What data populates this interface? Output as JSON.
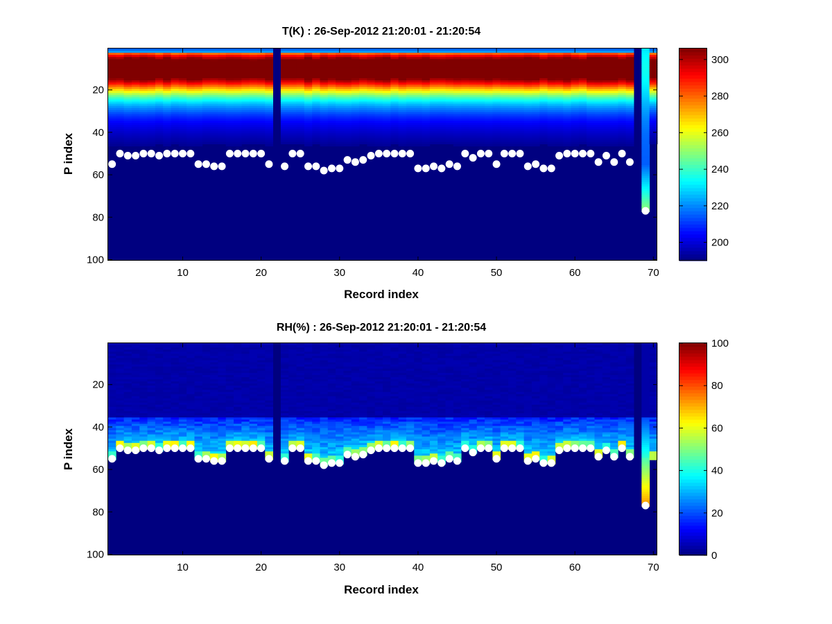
{
  "chart_data": [
    {
      "type": "heatmap",
      "title": "T(K) : 26-Sep-2012 21:20:01 - 21:20:54",
      "xlabel": "Record index",
      "ylabel": "P index",
      "x_range": [
        0.5,
        70.5
      ],
      "y_range": [
        0.5,
        100.5
      ],
      "y_reversed": true,
      "xticks": [
        10,
        20,
        30,
        40,
        50,
        60,
        70
      ],
      "yticks": [
        20,
        40,
        60,
        80,
        100
      ],
      "colormap": "jet",
      "clim": [
        190,
        306
      ],
      "colorbar_ticks": [
        200,
        220,
        240,
        260,
        280,
        300
      ],
      "field": "temperature",
      "missing_columns": [
        22,
        68
      ]
    },
    {
      "type": "heatmap",
      "title": "RH(%) : 26-Sep-2012 21:20:01 - 21:20:54",
      "xlabel": "Record index",
      "ylabel": "P index",
      "x_range": [
        0.5,
        70.5
      ],
      "y_range": [
        0.5,
        100.5
      ],
      "y_reversed": true,
      "xticks": [
        10,
        20,
        30,
        40,
        50,
        60,
        70
      ],
      "yticks": [
        20,
        40,
        60,
        80,
        100
      ],
      "colormap": "jet",
      "clim": [
        0,
        100
      ],
      "colorbar_ticks": [
        0,
        20,
        40,
        60,
        80,
        100
      ],
      "field": "humidity",
      "missing_columns": [
        22,
        68
      ]
    }
  ],
  "surface_markers": {
    "description": "white circles marking the surface P index per record (same in both panels)",
    "color": "#ffffff",
    "x": [
      1,
      2,
      3,
      4,
      5,
      6,
      7,
      8,
      9,
      10,
      11,
      12,
      13,
      14,
      15,
      16,
      17,
      18,
      19,
      20,
      21,
      23,
      24,
      25,
      26,
      27,
      28,
      29,
      30,
      31,
      32,
      33,
      34,
      35,
      36,
      37,
      38,
      39,
      40,
      41,
      42,
      43,
      44,
      45,
      46,
      47,
      48,
      49,
      50,
      51,
      52,
      53,
      54,
      55,
      56,
      57,
      58,
      59,
      60,
      61,
      62,
      63,
      64,
      65,
      66,
      67,
      69
    ],
    "y": [
      55,
      50,
      51,
      51,
      50,
      50,
      51,
      50,
      50,
      50,
      50,
      55,
      55,
      56,
      56,
      50,
      50,
      50,
      50,
      50,
      55,
      56,
      50,
      50,
      56,
      56,
      58,
      57,
      57,
      53,
      54,
      53,
      51,
      50,
      50,
      50,
      50,
      50,
      57,
      57,
      56,
      57,
      55,
      56,
      50,
      52,
      50,
      50,
      55,
      50,
      50,
      50,
      56,
      55,
      57,
      57,
      51,
      50,
      50,
      50,
      50,
      54,
      51,
      54,
      50,
      54,
      77
    ]
  }
}
